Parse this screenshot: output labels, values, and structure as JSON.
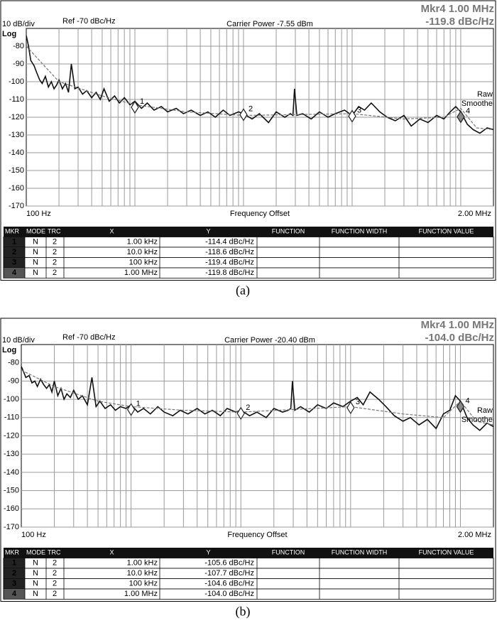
{
  "chart_data": [
    {
      "type": "line",
      "title": "Carrier Power -7.55 dBm",
      "ref_label": "Ref -70 dBc/Hz",
      "scale_label": "10 dB/div",
      "scale_type": "Log",
      "readout": [
        "Mkr4 1.00 MHz",
        "-119.8 dBc/Hz"
      ],
      "xlabel": "Frequency Offset",
      "xscale": "log",
      "xlim": [
        100,
        2000000
      ],
      "xticks": [
        {
          "value": 100,
          "label": "100 Hz"
        },
        {
          "value": 2000000,
          "label": "2.00 MHz"
        }
      ],
      "ylim": [
        -170,
        -70
      ],
      "yticks": [
        -80,
        -90,
        -100,
        -110,
        -120,
        -130,
        -140,
        -150,
        -160,
        -170
      ],
      "grid": true,
      "series": [
        {
          "name": "Raw",
          "color": "#111111",
          "x": [
            100,
            105,
            110,
            118,
            125,
            133,
            140,
            150,
            160,
            170,
            180,
            190,
            200,
            215,
            230,
            245,
            260,
            280,
            300,
            330,
            360,
            400,
            440,
            480,
            520,
            580,
            650,
            720,
            800,
            900,
            1000,
            1150,
            1300,
            1500,
            1750,
            2000,
            2400,
            2800,
            3300,
            4000,
            4700,
            5500,
            6500,
            7500,
            9000,
            10000,
            12000,
            14000,
            17000,
            20000,
            24000,
            27000,
            28500,
            29500,
            31000,
            35000,
            42000,
            50000,
            60000,
            70000,
            85000,
            100000,
            115000,
            130000,
            150000,
            180000,
            210000,
            250000,
            300000,
            350000,
            420000,
            500000,
            600000,
            700000,
            800000,
            900000,
            1000000,
            1150000,
            1300000,
            1500000,
            1750000,
            2000000
          ],
          "values": [
            -74,
            -80,
            -88,
            -91,
            -95,
            -99,
            -101,
            -97,
            -103,
            -100,
            -104,
            -102,
            -99,
            -104,
            -101,
            -106,
            -90,
            -104,
            -103,
            -107,
            -105,
            -109,
            -106,
            -110,
            -104,
            -111,
            -108,
            -112,
            -109,
            -113,
            -111,
            -115,
            -112,
            -116,
            -114,
            -117,
            -115,
            -118,
            -116,
            -119,
            -117,
            -120,
            -116,
            -119,
            -117,
            -118,
            -121,
            -118,
            -123,
            -117,
            -120,
            -118,
            -119,
            -104,
            -119,
            -118,
            -121,
            -117,
            -120,
            -118,
            -116,
            -119,
            -114,
            -116,
            -112,
            -117,
            -120,
            -122,
            -119,
            -125,
            -121,
            -123,
            -119,
            -121,
            -117,
            -114,
            -117,
            -124,
            -127,
            -129,
            -126,
            -127
          ]
        },
        {
          "name": "Smoothed",
          "color": "#777777",
          "x": [
            100,
            200,
            500,
            1000,
            3000,
            10000,
            100000,
            300000,
            700000,
            1000000,
            1400000,
            2000000
          ],
          "values": [
            -80,
            -100,
            -108,
            -113,
            -117,
            -119,
            -118,
            -121,
            -120,
            -115,
            -126,
            -127
          ]
        }
      ],
      "table_header": [
        "MKR",
        "MODE",
        "TRC",
        "X",
        "Y",
        "FUNCTION",
        "FUNCTION WIDTH",
        "FUNCTION VALUE"
      ],
      "markers": [
        {
          "label": "1",
          "mode": "N",
          "trace": "2",
          "x": 1000,
          "x_label": "1.00 kHz",
          "y": -114.4,
          "y_label": "-114.4 dBc/Hz"
        },
        {
          "label": "2",
          "mode": "N",
          "trace": "2",
          "x": 10000,
          "x_label": "10.0 kHz",
          "y": -118.6,
          "y_label": "-118.6 dBc/Hz"
        },
        {
          "label": "3",
          "mode": "N",
          "trace": "2",
          "x": 100000,
          "x_label": "100 kHz",
          "y": -119.4,
          "y_label": "-119.4 dBc/Hz"
        },
        {
          "label": "4",
          "mode": "N",
          "trace": "2",
          "x": 1000000,
          "x_label": "1.00 MHz",
          "y": -119.8,
          "y_label": "-119.8 dBc/Hz"
        }
      ],
      "caption": "(a)"
    },
    {
      "type": "line",
      "title": "Carrier Power -20.40 dBm",
      "ref_label": "Ref -70 dBc/Hz",
      "scale_label": "10 dB/div",
      "scale_type": "Log",
      "readout": [
        "Mkr4 1.00 MHz",
        "-104.0 dBc/Hz"
      ],
      "xlabel": "Frequency Offset",
      "xscale": "log",
      "xlim": [
        100,
        2000000
      ],
      "xticks": [
        {
          "value": 100,
          "label": "100 Hz"
        },
        {
          "value": 2000000,
          "label": "2.00 MHz"
        }
      ],
      "ylim": [
        -170,
        -70
      ],
      "yticks": [
        -80,
        -90,
        -100,
        -110,
        -120,
        -130,
        -140,
        -150,
        -160,
        -170
      ],
      "grid": true,
      "series": [
        {
          "name": "Raw",
          "color": "#111111",
          "x": [
            100,
            105,
            110,
            118,
            125,
            133,
            140,
            150,
            160,
            170,
            180,
            190,
            200,
            215,
            230,
            245,
            260,
            280,
            300,
            330,
            360,
            400,
            440,
            480,
            520,
            580,
            650,
            720,
            800,
            900,
            1000,
            1150,
            1300,
            1500,
            1750,
            2000,
            2400,
            2800,
            3300,
            4000,
            4700,
            5500,
            6500,
            7500,
            9000,
            10000,
            12000,
            14000,
            17000,
            20000,
            24000,
            27000,
            28500,
            29500,
            31000,
            35000,
            42000,
            50000,
            60000,
            70000,
            85000,
            100000,
            115000,
            130000,
            150000,
            180000,
            210000,
            250000,
            300000,
            350000,
            420000,
            500000,
            600000,
            700000,
            800000,
            900000,
            1000000,
            1150000,
            1300000,
            1500000,
            1750000,
            2000000
          ],
          "values": [
            -82,
            -85,
            -88,
            -87,
            -91,
            -90,
            -93,
            -89,
            -92,
            -94,
            -92,
            -96,
            -90,
            -98,
            -94,
            -100,
            -97,
            -99,
            -95,
            -100,
            -98,
            -103,
            -88,
            -104,
            -101,
            -105,
            -103,
            -106,
            -104,
            -105,
            -103,
            -107,
            -105,
            -108,
            -104,
            -107,
            -109,
            -106,
            -108,
            -105,
            -108,
            -106,
            -109,
            -105,
            -107,
            -106,
            -109,
            -107,
            -110,
            -105,
            -107,
            -106,
            -105,
            -90,
            -106,
            -104,
            -107,
            -103,
            -105,
            -102,
            -104,
            -101,
            -99,
            -103,
            -96,
            -100,
            -104,
            -109,
            -112,
            -110,
            -114,
            -111,
            -116,
            -108,
            -106,
            -98,
            -101,
            -110,
            -114,
            -117,
            -113,
            -115
          ]
        },
        {
          "name": "Smoothed",
          "color": "#777777",
          "x": [
            100,
            200,
            500,
            1000,
            3000,
            10000,
            100000,
            300000,
            700000,
            1000000,
            1400000,
            2000000
          ],
          "values": [
            -84,
            -93,
            -101,
            -104,
            -106,
            -107,
            -104,
            -108,
            -110,
            -101,
            -112,
            -114
          ]
        }
      ],
      "table_header": [
        "MKR",
        "MODE",
        "TRC",
        "X",
        "Y",
        "FUNCTION",
        "FUNCTION WIDTH",
        "FUNCTION VALUE"
      ],
      "markers": [
        {
          "label": "1",
          "mode": "N",
          "trace": "2",
          "x": 1000,
          "x_label": "1.00 kHz",
          "y": -105.6,
          "y_label": "-105.6 dBc/Hz"
        },
        {
          "label": "2",
          "mode": "N",
          "trace": "2",
          "x": 10000,
          "x_label": "10.0 kHz",
          "y": -107.7,
          "y_label": "-107.7 dBc/Hz"
        },
        {
          "label": "3",
          "mode": "N",
          "trace": "2",
          "x": 100000,
          "x_label": "100 kHz",
          "y": -104.6,
          "y_label": "-104.6 dBc/Hz"
        },
        {
          "label": "4",
          "mode": "N",
          "trace": "2",
          "x": 1000000,
          "x_label": "1.00 MHz",
          "y": -104.0,
          "y_label": "-104.0 dBc/Hz"
        }
      ],
      "caption": "(b)"
    }
  ]
}
